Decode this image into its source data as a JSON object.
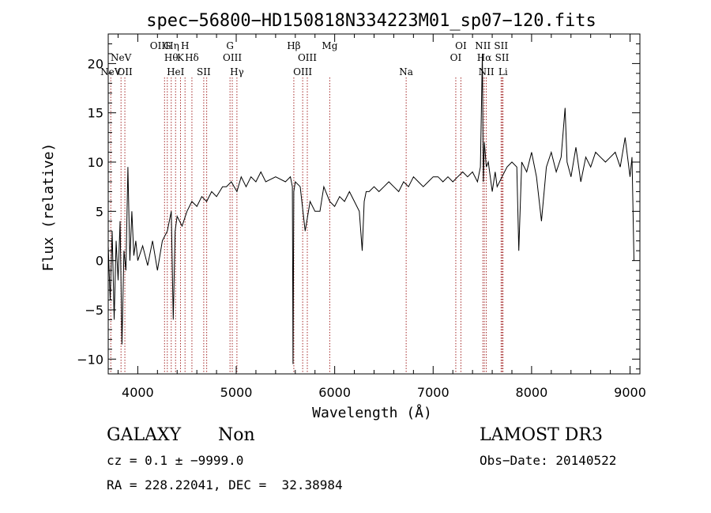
{
  "chart_data": {
    "type": "line",
    "title": "spec−56800−HD150818N334223M01_sp07−120.fits",
    "xlabel": "Wavelength (Å)",
    "ylabel": "Flux (relative)",
    "xlim": [
      3700,
      9100
    ],
    "ylim": [
      -11.5,
      23
    ],
    "x_ticks": [
      4000,
      5000,
      6000,
      7000,
      8000,
      9000
    ],
    "y_ticks": [
      -10,
      -5,
      0,
      5,
      10,
      15,
      20
    ],
    "line_color": "#000000",
    "marker_color": "#a52a2a",
    "series": [
      {
        "name": "flux",
        "x": [
          3700,
          3720,
          3740,
          3760,
          3780,
          3800,
          3820,
          3840,
          3860,
          3880,
          3900,
          3920,
          3940,
          3960,
          3980,
          4000,
          4050,
          4100,
          4150,
          4200,
          4250,
          4300,
          4340,
          4360,
          4380,
          4400,
          4450,
          4500,
          4550,
          4600,
          4650,
          4700,
          4750,
          4800,
          4861,
          4900,
          4950,
          5007,
          5050,
          5100,
          5150,
          5200,
          5250,
          5300,
          5400,
          5500,
          5550,
          5570,
          5577,
          5585,
          5600,
          5650,
          5700,
          5750,
          5800,
          5850,
          5890,
          5950,
          6000,
          6050,
          6100,
          6150,
          6200,
          6250,
          6280,
          6300,
          6320,
          6350,
          6400,
          6450,
          6500,
          6550,
          6600,
          6650,
          6700,
          6750,
          6800,
          6850,
          6900,
          6950,
          7000,
          7050,
          7100,
          7150,
          7200,
          7250,
          7300,
          7350,
          7400,
          7450,
          7480,
          7500,
          7510,
          7520,
          7540,
          7560,
          7600,
          7630,
          7650,
          7700,
          7750,
          7800,
          7850,
          7870,
          7900,
          7950,
          8000,
          8050,
          8100,
          8150,
          8200,
          8250,
          8300,
          8340,
          8360,
          8400,
          8450,
          8500,
          8550,
          8600,
          8650,
          8700,
          8750,
          8800,
          8850,
          8900,
          8950,
          9000,
          9020,
          9040
        ],
        "y": [
          1.5,
          -4,
          3,
          -6,
          2,
          -2,
          4,
          -8.5,
          1,
          -1,
          9.5,
          0,
          5,
          0.5,
          2,
          0,
          1.5,
          -0.5,
          2,
          -1,
          2,
          3,
          5,
          -6,
          3,
          4.5,
          3.5,
          5,
          6,
          5.5,
          6.5,
          6,
          7,
          6.5,
          7.5,
          7.5,
          8,
          7,
          8.5,
          7.5,
          8.5,
          8,
          9,
          8,
          8.5,
          8,
          8.5,
          7.5,
          -10.5,
          7,
          8,
          7.5,
          3,
          6,
          5,
          5,
          7.5,
          6,
          5.5,
          6.5,
          6,
          7,
          6,
          5,
          1,
          6,
          7,
          7,
          7.5,
          7,
          7.5,
          8,
          7.5,
          7,
          8,
          7.5,
          8.5,
          8,
          7.5,
          8,
          8.5,
          8.5,
          8,
          8.5,
          8,
          8.5,
          9,
          8.5,
          9,
          8,
          9.5,
          21,
          8,
          12,
          9.5,
          10,
          7,
          9,
          7.5,
          8.5,
          9.5,
          10,
          9.5,
          1,
          10,
          9,
          11,
          8.5,
          4,
          9.5,
          11,
          9,
          10.5,
          15.5,
          10,
          8.5,
          11.5,
          8,
          10.5,
          9.5,
          11,
          10.5,
          10,
          10.5,
          11,
          9.5,
          12.5,
          8.5,
          10.5,
          0
        ]
      }
    ],
    "line_markers": [
      {
        "x": 3726,
        "label": "NeV",
        "row": 3
      },
      {
        "x": 3830,
        "label": "NeV",
        "row": 2
      },
      {
        "x": 3869,
        "label": "OII",
        "row": 3
      },
      {
        "x": 4272,
        "label": "OIIHη",
        "row": 1
      },
      {
        "x": 4300,
        "label": "G",
        "row": 1
      },
      {
        "x": 4340,
        "label": "Hθ",
        "row": 2
      },
      {
        "x": 4384,
        "label": "HeI",
        "row": 3
      },
      {
        "x": 4434,
        "label": "K",
        "row": 2
      },
      {
        "x": 4480,
        "label": "H",
        "row": 1
      },
      {
        "x": 4550,
        "label": "Hδ",
        "row": 2
      },
      {
        "x": 4670,
        "label": "SII",
        "row": 3
      },
      {
        "x": 4700,
        "label": "",
        "row": 0
      },
      {
        "x": 4937,
        "label": "G",
        "row": 1
      },
      {
        "x": 4960,
        "label": "OIII",
        "row": 2
      },
      {
        "x": 5007,
        "label": "Hγ",
        "row": 3
      },
      {
        "x": 5585,
        "label": "Hβ",
        "row": 1
      },
      {
        "x": 5675,
        "label": "OIII",
        "row": 3
      },
      {
        "x": 5722,
        "label": "OIII",
        "row": 2
      },
      {
        "x": 5950,
        "label": "Mg",
        "row": 1
      },
      {
        "x": 6726,
        "label": "Na",
        "row": 3
      },
      {
        "x": 7230,
        "label": "OI",
        "row": 2
      },
      {
        "x": 7282,
        "label": "OI",
        "row": 1
      },
      {
        "x": 7505,
        "label": "NII",
        "row": 1
      },
      {
        "x": 7520,
        "label": "Hα",
        "row": 2
      },
      {
        "x": 7540,
        "label": "NII",
        "row": 3
      },
      {
        "x": 7690,
        "label": "SII",
        "row": 1
      },
      {
        "x": 7700,
        "label": "SII",
        "row": 2
      },
      {
        "x": 7710,
        "label": "Li",
        "row": 3
      }
    ]
  },
  "info": {
    "class_label": "GALAXY",
    "subclass_label": "Non",
    "survey": "LAMOST DR3",
    "cz_line": "cz = 0.1 ± −9999.0",
    "obs_date": "Obs−Date: 20140522",
    "coords_line": "RA = 228.22041, DEC =  32.38984"
  }
}
